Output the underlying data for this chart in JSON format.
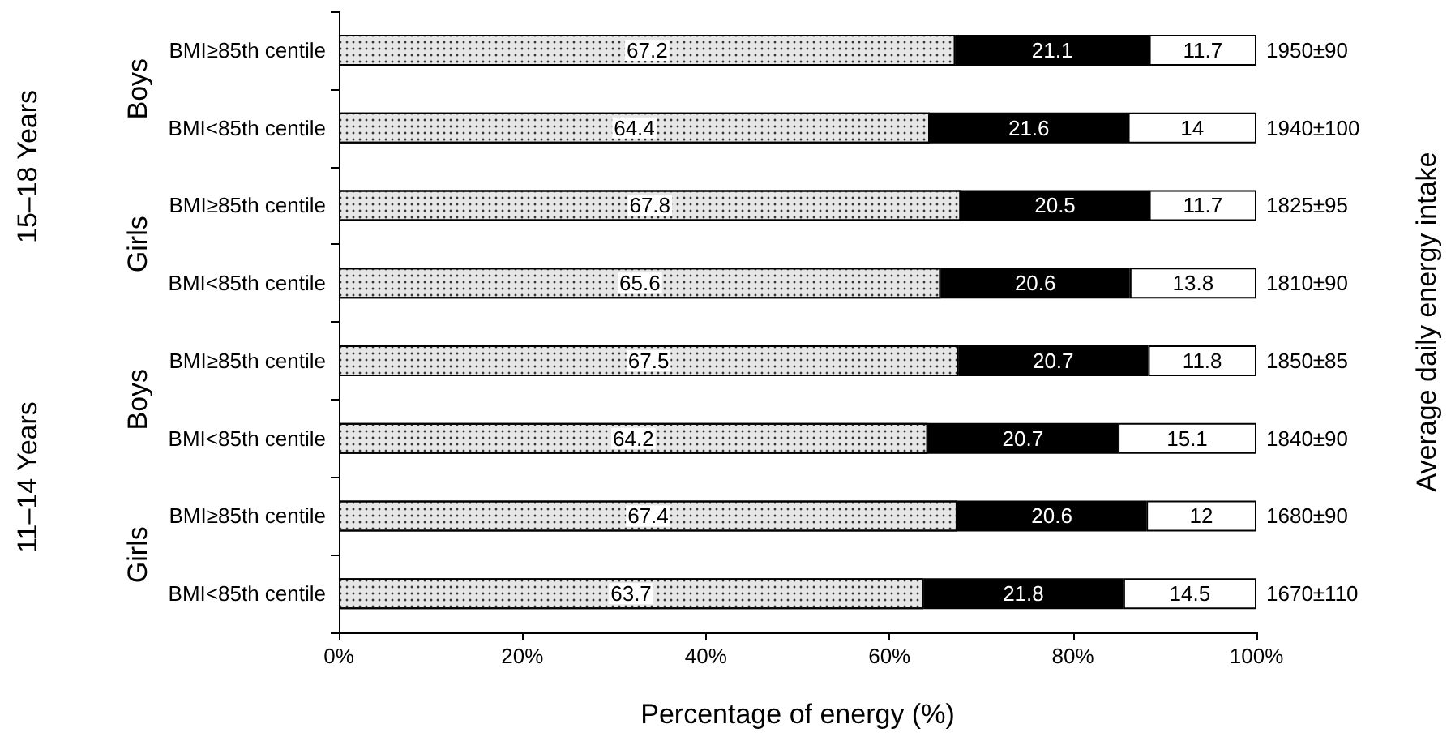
{
  "chart_data": {
    "type": "bar",
    "orientation": "horizontal",
    "stacked": true,
    "data_labels": true,
    "grid": false,
    "xlabel": "Percentage of energy (%)",
    "y2label": "Average daily energy intake",
    "categories": [
      "BMI≥85th centile",
      "BMI<85th centile",
      "BMI≥85th centile",
      "BMI<85th centile",
      "BMI≥85th centile",
      "BMI<85th centile",
      "BMI≥85th centile",
      "BMI<85th centile"
    ],
    "series": [
      {
        "color": "#e6e6e6",
        "values": [
          67.2,
          64.4,
          67.8,
          65.6,
          67.5,
          64.2,
          67.4,
          63.7
        ]
      },
      {
        "color": "#000000",
        "values": [
          21.1,
          21.6,
          20.5,
          20.6,
          20.7,
          20.7,
          20.6,
          21.8
        ]
      },
      {
        "color": "#ffffff",
        "values": [
          11.7,
          14,
          11.7,
          13.8,
          11.8,
          15.1,
          12,
          14.5
        ]
      }
    ],
    "xlim": [
      0,
      100
    ],
    "xticks": [
      {
        "value": 0,
        "label": "0%"
      },
      {
        "value": 20,
        "label": "20%"
      },
      {
        "value": 40,
        "label": "40%"
      },
      {
        "value": 60,
        "label": "60%"
      },
      {
        "value": 80,
        "label": "80%"
      },
      {
        "value": 100,
        "label": "100%"
      }
    ],
    "annotations": [
      "1950±90",
      "1940±100",
      "1825±95",
      "1810±90",
      "1850±85",
      "1840±90",
      "1680±90",
      "1670±110",
      "Boys",
      "Girls",
      "Boys",
      "Girls",
      "15–18 Years",
      "11–14 Years"
    ]
  }
}
